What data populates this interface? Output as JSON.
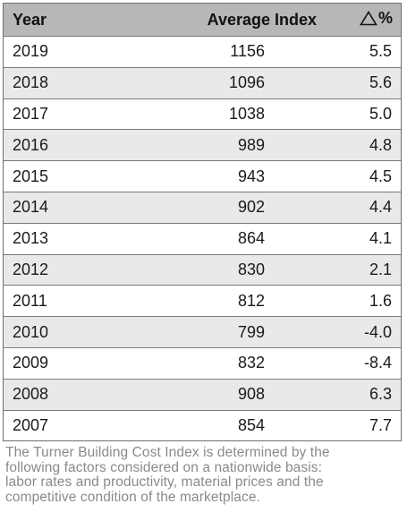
{
  "table": {
    "headers": {
      "year": "Year",
      "index": "Average Index",
      "delta": "%"
    },
    "rows": [
      {
        "year": "2019",
        "index": "1156",
        "delta": "5.5"
      },
      {
        "year": "2018",
        "index": "1096",
        "delta": "5.6"
      },
      {
        "year": "2017",
        "index": "1038",
        "delta": "5.0"
      },
      {
        "year": "2016",
        "index": "989",
        "delta": "4.8"
      },
      {
        "year": "2015",
        "index": "943",
        "delta": "4.5"
      },
      {
        "year": "2014",
        "index": "902",
        "delta": "4.4"
      },
      {
        "year": "2013",
        "index": "864",
        "delta": "4.1"
      },
      {
        "year": "2012",
        "index": "830",
        "delta": "2.1"
      },
      {
        "year": "2011",
        "index": "812",
        "delta": "1.6"
      },
      {
        "year": "2010",
        "index": "799",
        "delta": "-4.0"
      },
      {
        "year": "2009",
        "index": "832",
        "delta": "-8.4"
      },
      {
        "year": "2008",
        "index": "908",
        "delta": "6.3"
      },
      {
        "year": "2007",
        "index": "854",
        "delta": "7.7"
      }
    ]
  },
  "caption": {
    "lines": [
      "The Turner Building Cost Index is determined by the",
      "following factors considered on a nationwide basis:",
      "labor rates and productivity, material prices and the",
      "competitive condition of the marketplace."
    ]
  },
  "colors": {
    "header_bg": "#b7b7b7",
    "shaded_row_bg": "#e9e9e9",
    "border": "#7a7a7a",
    "caption_text": "#8a8a8a"
  },
  "icons": {
    "delta": "delta-triangle-icon"
  }
}
